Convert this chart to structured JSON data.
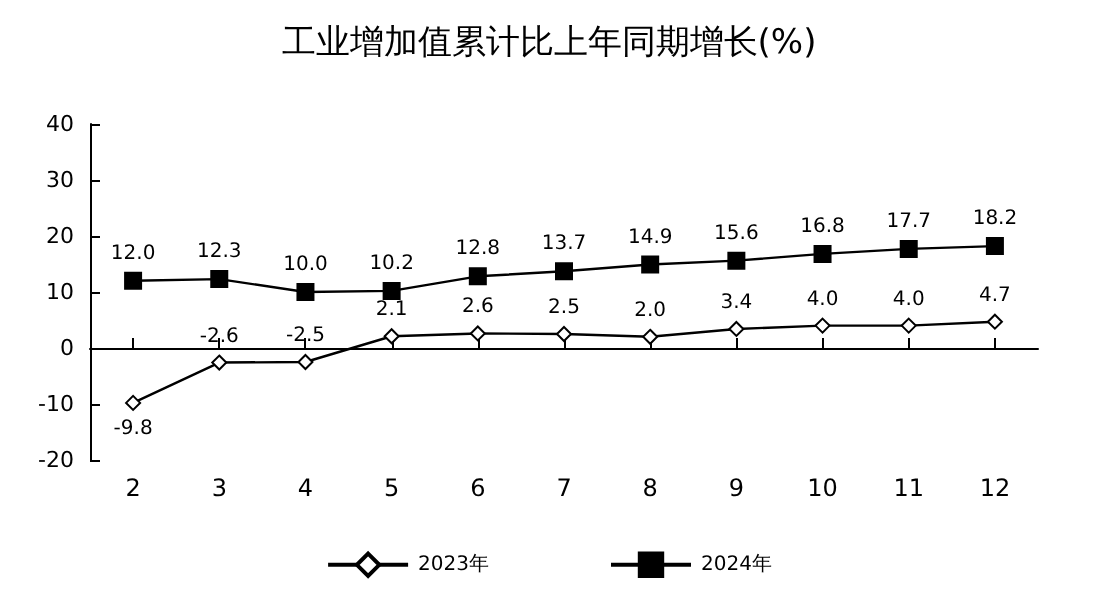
{
  "chart_data": {
    "type": "line",
    "title": "工业增加值累计比上年同期增长(%)",
    "categories": [
      "2",
      "3",
      "4",
      "5",
      "6",
      "7",
      "8",
      "9",
      "10",
      "11",
      "12"
    ],
    "series": [
      {
        "name": "2023年",
        "color": "#000000",
        "marker": "diamond",
        "values": [
          -9.8,
          -2.6,
          -2.5,
          2.1,
          2.6,
          2.5,
          2.0,
          3.4,
          4.0,
          4.0,
          4.7
        ],
        "value_labels": [
          "-9.8",
          "-2.6",
          "-2.5",
          "2.1",
          "2.6",
          "2.5",
          "2.0",
          "3.4",
          "4.0",
          "4.0",
          "4.7"
        ]
      },
      {
        "name": "2024年",
        "color": "#000000",
        "marker": "square",
        "values": [
          12.0,
          12.3,
          10.0,
          10.2,
          12.8,
          13.7,
          14.9,
          15.6,
          16.8,
          17.7,
          18.2
        ],
        "value_labels": [
          "12.0",
          "12.3",
          "10.0",
          "10.2",
          "12.8",
          "13.7",
          "14.9",
          "15.6",
          "16.8",
          "17.7",
          "18.2"
        ]
      }
    ],
    "ylim": [
      -20,
      40
    ],
    "yticks": [
      -20,
      -10,
      0,
      10,
      20,
      30,
      40
    ],
    "legend": "bottom"
  }
}
